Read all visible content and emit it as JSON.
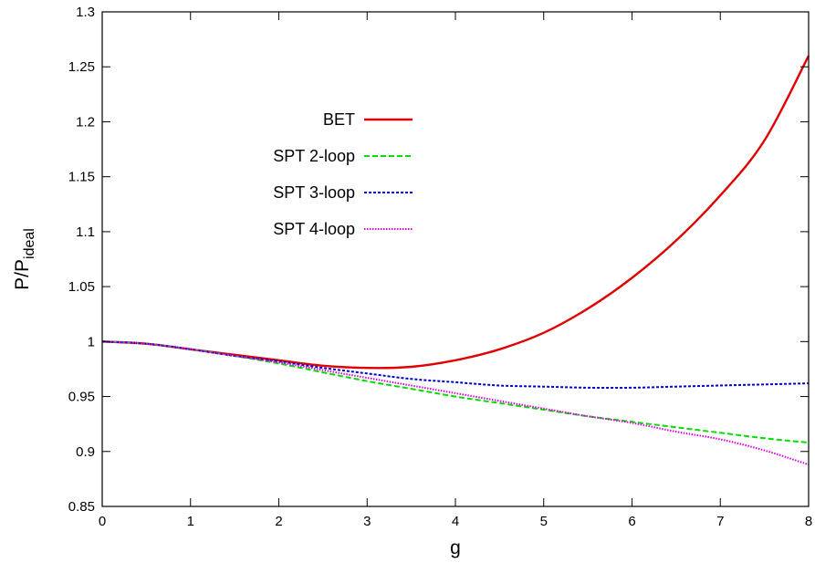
{
  "chart_data": {
    "type": "line",
    "xlabel": "g",
    "ylabel": "P/P",
    "ylabel_subscript": "ideal",
    "xlim": [
      0,
      8
    ],
    "ylim": [
      0.85,
      1.3
    ],
    "xticks": [
      0,
      1,
      2,
      3,
      4,
      5,
      6,
      7,
      8
    ],
    "xtick_labels": [
      "0",
      "1",
      "2",
      "3",
      "4",
      "5",
      "6",
      "7",
      "8"
    ],
    "yticks": [
      0.85,
      0.9,
      0.95,
      1.0,
      1.05,
      1.1,
      1.15,
      1.2,
      1.25,
      1.3
    ],
    "ytick_labels": [
      "0.85",
      "0.9",
      "0.95",
      "1",
      "1.05",
      "1.1",
      "1.15",
      "1.2",
      "1.25",
      "1.3"
    ],
    "grid": false,
    "legend_position": "upper-left",
    "x": [
      0,
      0.5,
      1,
      1.5,
      2,
      2.5,
      3,
      3.5,
      4,
      4.5,
      5,
      5.5,
      6,
      6.5,
      7,
      7.5,
      8
    ],
    "series": [
      {
        "name": "BET",
        "color": "#e00000",
        "dash": "solid",
        "values": [
          1.0,
          0.998,
          0.993,
          0.988,
          0.983,
          0.978,
          0.976,
          0.977,
          0.983,
          0.993,
          1.008,
          1.03,
          1.058,
          1.092,
          1.133,
          1.183,
          1.26
        ]
      },
      {
        "name": "SPT 2-loop",
        "color": "#00dd00",
        "dash": "dashed",
        "values": [
          1.0,
          0.998,
          0.993,
          0.987,
          0.98,
          0.972,
          0.964,
          0.957,
          0.95,
          0.944,
          0.938,
          0.932,
          0.927,
          0.922,
          0.917,
          0.912,
          0.908
        ]
      },
      {
        "name": "SPT 3-loop",
        "color": "#0000cc",
        "dash": "dotted",
        "values": [
          1.0,
          0.998,
          0.993,
          0.987,
          0.982,
          0.976,
          0.971,
          0.966,
          0.963,
          0.96,
          0.959,
          0.958,
          0.958,
          0.959,
          0.96,
          0.961,
          0.962
        ]
      },
      {
        "name": "SPT 4-loop",
        "color": "#dd00dd",
        "dash": "dense-dotted",
        "values": [
          1.0,
          0.998,
          0.993,
          0.987,
          0.981,
          0.974,
          0.967,
          0.96,
          0.953,
          0.946,
          0.939,
          0.932,
          0.926,
          0.918,
          0.911,
          0.901,
          0.888
        ]
      }
    ]
  }
}
